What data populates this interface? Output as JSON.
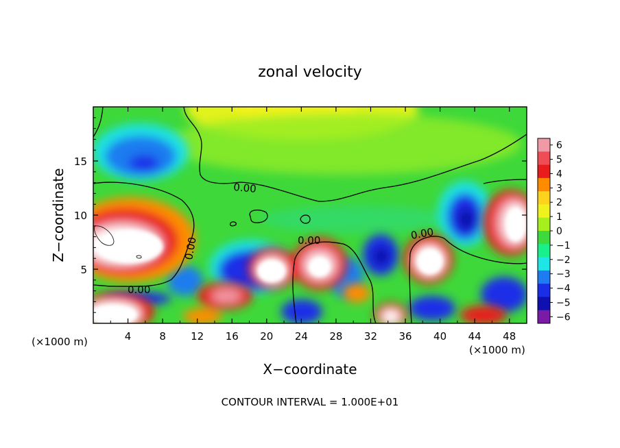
{
  "chart_data": {
    "type": "heatmap",
    "title": "zonal velocity",
    "xlabel": "X−coordinate",
    "ylabel": "Z−coordinate",
    "x_unit_left": "(×1000 m)",
    "x_unit_right": "(×1000 m)",
    "footer": "CONTOUR INTERVAL = 1.000E+01",
    "xlim": [
      0,
      50
    ],
    "ylim": [
      0,
      20
    ],
    "x_ticks": [
      "4",
      "8",
      "12",
      "16",
      "20",
      "24",
      "28",
      "32",
      "36",
      "40",
      "44",
      "48"
    ],
    "y_ticks": [
      "5",
      "10",
      "15"
    ],
    "contour_label": "0.00",
    "colorbar": {
      "range": [
        -6,
        6
      ],
      "labels": [
        "6",
        "5",
        "4",
        "3",
        "2",
        "1",
        "0",
        "−1",
        "−2",
        "−3",
        "−4",
        "−5",
        "−6"
      ],
      "colors": [
        "#f09aa6",
        "#ee4d55",
        "#e81c1c",
        "#ff8c00",
        "#ffd21e",
        "#f0f21e",
        "#a6ef1e",
        "#3dd93d",
        "#19f08c",
        "#1ee6e6",
        "#1e7cf0",
        "#1a2ee8",
        "#1010b0",
        "#7a1aa6"
      ]
    },
    "features": [
      {
        "kind": "positive-max",
        "x": 4.5,
        "z": 8.0,
        "value": 8
      },
      {
        "kind": "positive-max",
        "x": 48.0,
        "z": 9.0,
        "value": 8
      },
      {
        "kind": "positive-max",
        "x": 21.0,
        "z": 5.0,
        "value": 7
      },
      {
        "kind": "positive-max",
        "x": 26.0,
        "z": 5.5,
        "value": 7
      },
      {
        "kind": "positive-max",
        "x": 38.0,
        "z": 6.0,
        "value": 7
      },
      {
        "kind": "positive-max",
        "x": 2.0,
        "z": 1.5,
        "value": 7
      },
      {
        "kind": "positive-max",
        "x": 15.0,
        "z": 2.0,
        "value": 6
      },
      {
        "kind": "positive-max",
        "x": 33.5,
        "z": 1.0,
        "value": 6
      },
      {
        "kind": "negative-min",
        "x": 6.0,
        "z": 15.0,
        "value": -5
      },
      {
        "kind": "negative-min",
        "x": 43.0,
        "z": 10.0,
        "value": -6
      },
      {
        "kind": "negative-min",
        "x": 34.0,
        "z": 6.0,
        "value": -6
      },
      {
        "kind": "negative-min",
        "x": 18.5,
        "z": 6.5,
        "value": -5
      },
      {
        "kind": "negative-min",
        "x": 30.5,
        "z": 4.5,
        "value": -4
      },
      {
        "kind": "negative-min",
        "x": 39.5,
        "z": 1.5,
        "value": -5
      },
      {
        "kind": "negative-min",
        "x": 46.5,
        "z": 3.5,
        "value": -5
      },
      {
        "kind": "positive-max",
        "x": 25.0,
        "z": 20.0,
        "value": 2
      }
    ]
  }
}
